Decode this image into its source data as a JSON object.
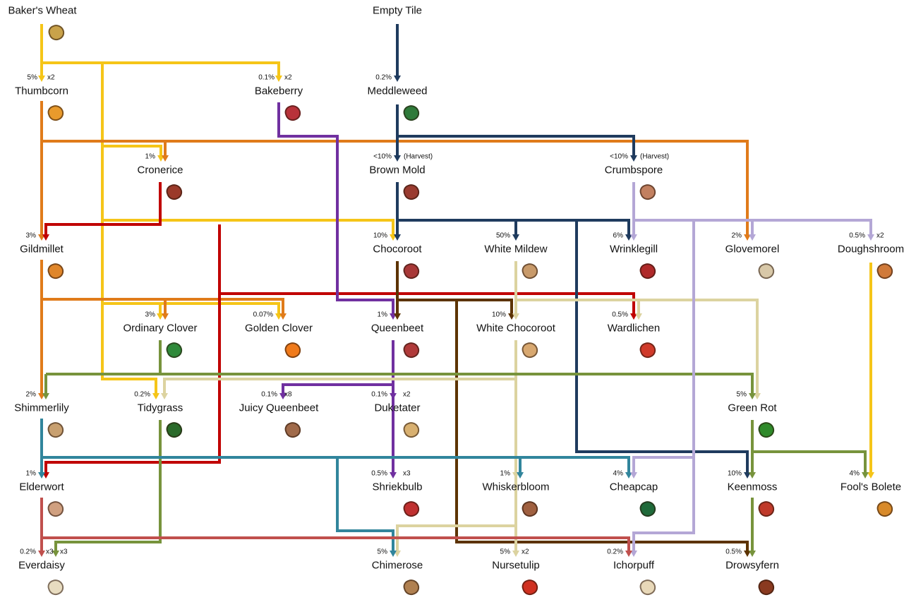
{
  "colors": {
    "yellow": "#f5c518",
    "orange": "#e07b1a",
    "red": "#c00000",
    "purple": "#7030a0",
    "navy": "#1f3b5e",
    "brown": "#5c3300",
    "tan": "#dcd3a0",
    "green": "#77933c",
    "teal": "#31859c",
    "lavender": "#b4a7d6",
    "rose": "#c0504d"
  },
  "nodes": [
    {
      "name": "Baker's Wheat",
      "prob": "",
      "mult": "",
      "icon_color": "#c9a24a"
    },
    {
      "name": "Empty  Tile",
      "prob": "",
      "mult": "",
      "icon_color": ""
    },
    {
      "name": "Thumbcorn",
      "prob": "5%",
      "mult": "x2",
      "icon_color": "#e89a2c"
    },
    {
      "name": "Bakeberry",
      "prob": "0.1%",
      "mult": "x2",
      "icon_color": "#b8323a"
    },
    {
      "name": "Meddleweed",
      "prob": "0.2%",
      "mult": "",
      "icon_color": "#2f7a3a"
    },
    {
      "name": "Cronerice",
      "prob": "1%",
      "mult": "",
      "icon_color": "#9b3a2a"
    },
    {
      "name": "Brown Mold",
      "prob": "<10%",
      "mult": "(Harvest)",
      "icon_color": "#9a3b30"
    },
    {
      "name": "Crumbspore",
      "prob": "<10%",
      "mult": "(Harvest)",
      "icon_color": "#c28060"
    },
    {
      "name": "Gildmillet",
      "prob": "3%",
      "mult": "",
      "icon_color": "#e0862a"
    },
    {
      "name": "Chocoroot",
      "prob": "10%",
      "mult": "",
      "icon_color": "#a83838"
    },
    {
      "name": "White Mildew",
      "prob": "50%",
      "mult": "",
      "icon_color": "#c89a6a"
    },
    {
      "name": "Wrinklegill",
      "prob": "6%",
      "mult": "",
      "icon_color": "#b02a2a"
    },
    {
      "name": "Glovemorel",
      "prob": "2%",
      "mult": "",
      "icon_color": "#d8c8a8"
    },
    {
      "name": "Doughshroom",
      "prob": "0.5%",
      "mult": "x2",
      "icon_color": "#d07a3a"
    },
    {
      "name": "Ordinary Clover",
      "prob": "3%",
      "mult": "",
      "icon_color": "#2f8a3a"
    },
    {
      "name": "Golden Clover",
      "prob": "0.07%",
      "mult": "",
      "icon_color": "#f07a1a"
    },
    {
      "name": "Queenbeet",
      "prob": "1%",
      "mult": "",
      "icon_color": "#b03a3a"
    },
    {
      "name": "White Chocoroot",
      "prob": "10%",
      "mult": "",
      "icon_color": "#d8a870"
    },
    {
      "name": "Wardlichen",
      "prob": "0.5%",
      "mult": "",
      "icon_color": "#d03a2a"
    },
    {
      "name": "Shimmerlily",
      "prob": "2%",
      "mult": "",
      "icon_color": "#c8a070"
    },
    {
      "name": "Tidygrass",
      "prob": "0.2%",
      "mult": "",
      "icon_color": "#2a6a2a"
    },
    {
      "name": "Juicy Queenbeet",
      "prob": "0.1%",
      "mult": "x8",
      "icon_color": "#a06a4a"
    },
    {
      "name": "Duketater",
      "prob": "0.1%",
      "mult": "x2",
      "icon_color": "#d8b070"
    },
    {
      "name": "Green Rot",
      "prob": "5%",
      "mult": "",
      "icon_color": "#2f8a2a"
    },
    {
      "name": "Elderwort",
      "prob": "1%",
      "mult": "",
      "icon_color": "#d0a080"
    },
    {
      "name": "Shriekbulb",
      "prob": "0.5%",
      "mult": "x3",
      "icon_color": "#c03030"
    },
    {
      "name": "Whiskerbloom",
      "prob": "1%",
      "mult": "",
      "icon_color": "#a06040"
    },
    {
      "name": "Cheapcap",
      "prob": "4%",
      "mult": "",
      "icon_color": "#1f6a3a"
    },
    {
      "name": "Keenmoss",
      "prob": "10%",
      "mult": "",
      "icon_color": "#c03a2a"
    },
    {
      "name": "Fool's Bolete",
      "prob": "4%",
      "mult": "",
      "icon_color": "#d88a2a"
    },
    {
      "name": "Everdaisy",
      "prob": "0.2%",
      "mult": "x3",
      "mult2": "x3",
      "icon_color": "#e8dcc0"
    },
    {
      "name": "Chimerose",
      "prob": "5%",
      "mult": "",
      "icon_color": "#b08050"
    },
    {
      "name": "Nursetulip",
      "prob": "5%",
      "mult": "x2",
      "icon_color": "#d03020"
    },
    {
      "name": "Ichorpuff",
      "prob": "0.2%",
      "mult": "",
      "icon_color": "#e8d8b8"
    },
    {
      "name": "Drowsyfern",
      "prob": "0.5%",
      "mult": "",
      "icon_color": "#8a3a20"
    }
  ]
}
